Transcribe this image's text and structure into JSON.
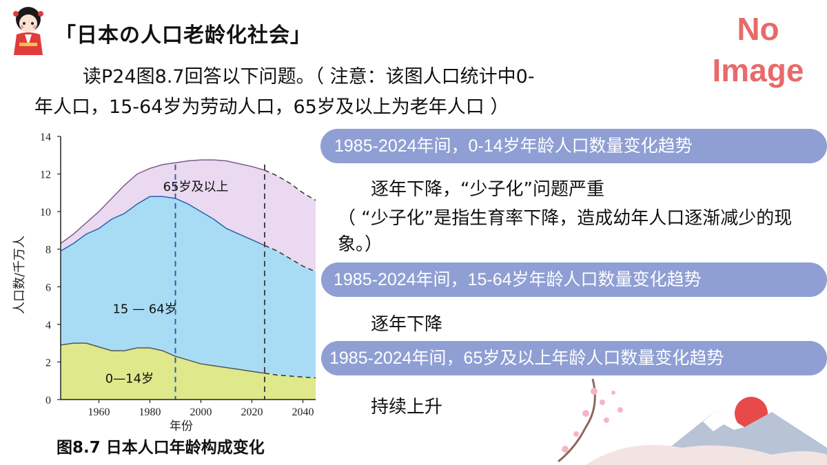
{
  "header": {
    "title": "「日本の人口老龄化社会」",
    "watermark_line1": "No",
    "watermark_line2": "Image"
  },
  "intro": {
    "line1": "读P24图8.7回答以下问题。（ 注意：该图人口统计中0-",
    "line2": "年人口，15-64岁为劳动人口，65岁及以上为老年人口 ）"
  },
  "figure": {
    "caption": "图8.7  日本人口年龄构成变化"
  },
  "questions": [
    {
      "prompt": "1985-2024年间，0-14岁年龄人口数量变化趋势",
      "answer": "逐年下降，“少子化”问题严重",
      "note": "（ “少子化”是指生育率下降，造成幼年人口逐渐减少的现象。）"
    },
    {
      "prompt": "1985-2024年间，15-64岁年龄人口数量变化趋势",
      "answer": "逐年下降"
    },
    {
      "prompt": "1985-2024年间，65岁及以上年龄人口数量变化趋势",
      "answer": "持续上升"
    }
  ],
  "chart_data": {
    "type": "area",
    "stacked": true,
    "title": "",
    "xlabel": "年份",
    "ylabel": "人口数/千万人",
    "xlim": [
      1945,
      2045
    ],
    "ylim": [
      0,
      14
    ],
    "x_ticks": [
      1960,
      1980,
      2000,
      2020,
      2040
    ],
    "y_ticks": [
      0,
      2,
      4,
      6,
      8,
      10,
      12,
      14
    ],
    "grid": false,
    "projection_from": 2025,
    "reference_lines": [
      1990,
      2025
    ],
    "x": [
      1945,
      1950,
      1955,
      1960,
      1965,
      1970,
      1975,
      1980,
      1985,
      1990,
      1995,
      2000,
      2005,
      2010,
      2015,
      2020,
      2025,
      2030,
      2035,
      2040,
      2045
    ],
    "series": [
      {
        "name": "0—14岁",
        "color": "#dfe88a",
        "values": [
          2.9,
          3.0,
          3.0,
          2.8,
          2.6,
          2.6,
          2.75,
          2.75,
          2.6,
          2.3,
          2.1,
          1.9,
          1.8,
          1.7,
          1.6,
          1.5,
          1.4,
          1.3,
          1.25,
          1.2,
          1.15
        ]
      },
      {
        "name": "15 — 64岁",
        "color": "#a8dcf4",
        "values": [
          7.9,
          8.3,
          8.8,
          9.1,
          9.6,
          9.9,
          10.4,
          10.8,
          10.8,
          10.7,
          10.4,
          10.0,
          9.6,
          9.1,
          8.8,
          8.5,
          8.2,
          7.9,
          7.5,
          7.1,
          6.8
        ]
      },
      {
        "name": "65岁及以上",
        "color": "#ead9f0",
        "values": [
          8.3,
          8.8,
          9.4,
          10.0,
          10.7,
          11.4,
          12.0,
          12.3,
          12.5,
          12.6,
          12.7,
          12.75,
          12.75,
          12.7,
          12.55,
          12.4,
          12.2,
          11.9,
          11.5,
          11.0,
          10.6
        ]
      }
    ]
  }
}
